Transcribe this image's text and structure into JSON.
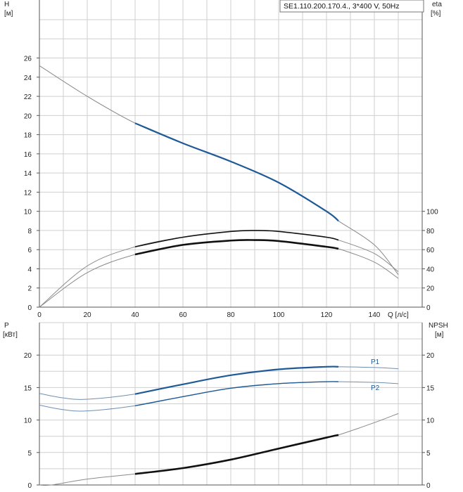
{
  "title_box": "SE1.110.200.170.4., 3*400 V, 50Hz",
  "colors": {
    "grid": "#cfcfcf",
    "axis": "#555555",
    "blue": "#1f5a96",
    "black": "#111111",
    "thin": "#8a8a8a"
  },
  "top_chart": {
    "left_axis_label_line1": "H",
    "left_axis_label_line2": "[м]",
    "right_axis_label_line1": "eta",
    "right_axis_label_line2": "[%]",
    "x_unit_label": "Q [л/с]",
    "x_ticks": [
      "0",
      "20",
      "40",
      "60",
      "80",
      "100",
      "120",
      "140"
    ],
    "left_ticks": [
      "0",
      "2",
      "4",
      "6",
      "8",
      "10",
      "12",
      "14",
      "16",
      "18",
      "20",
      "22",
      "24",
      "26"
    ],
    "right_ticks": [
      "0",
      "20",
      "40",
      "60",
      "80",
      "100"
    ]
  },
  "bottom_chart": {
    "left_axis_label_line1": "P",
    "left_axis_label_line2": "[кВт]",
    "right_axis_label_line1": "NPSH",
    "right_axis_label_line2": "[м]",
    "left_ticks": [
      "0",
      "5",
      "10",
      "15",
      "20"
    ],
    "right_ticks": [
      "0",
      "5",
      "10",
      "15",
      "20"
    ],
    "p1_label": "P1",
    "p2_label": "P2"
  },
  "chart_data": [
    {
      "type": "line",
      "x_label": "Q [л/с]",
      "y_label": "H [м]",
      "y2_label": "eta [%]",
      "xlim": [
        0,
        160
      ],
      "ylim": [
        0,
        30
      ],
      "y2lim": [
        0,
        100
      ],
      "grid": true,
      "series": [
        {
          "role": "head",
          "x": [
            0,
            20,
            40,
            60,
            80,
            100,
            120,
            125,
            140,
            150
          ],
          "y": [
            25.2,
            22.0,
            19.2,
            17.1,
            15.2,
            13.0,
            10.0,
            9.0,
            6.5,
            3.4
          ],
          "bold_range": [
            40,
            125
          ]
        },
        {
          "role": "efficiency_upper",
          "x": [
            0,
            20,
            40,
            60,
            80,
            90,
            100,
            120,
            125,
            140,
            150
          ],
          "y": [
            0,
            43,
            63,
            73,
            79,
            80,
            79,
            73,
            70,
            56,
            37
          ],
          "bold_range": [
            40,
            125
          ]
        },
        {
          "role": "efficiency_lower",
          "x": [
            0,
            20,
            40,
            60,
            80,
            90,
            100,
            120,
            125,
            140,
            150
          ],
          "y": [
            0,
            36,
            55,
            65,
            69.5,
            70,
            69,
            63,
            61,
            47,
            30
          ],
          "bold_range": [
            40,
            125
          ]
        }
      ]
    },
    {
      "type": "line",
      "x_label": "Q [л/с]",
      "y_label": "P [кВт]",
      "y2_label": "NPSH [м]",
      "xlim": [
        0,
        160
      ],
      "ylim": [
        0,
        25
      ],
      "y2lim": [
        0,
        25
      ],
      "grid": true,
      "series": [
        {
          "name": "P1",
          "x": [
            0,
            10,
            20,
            40,
            60,
            80,
            100,
            120,
            125,
            140,
            150
          ],
          "y": [
            14.1,
            13.4,
            13.2,
            14.0,
            15.5,
            16.9,
            17.8,
            18.2,
            18.2,
            18.1,
            17.9
          ],
          "bold_range": [
            40,
            125
          ]
        },
        {
          "name": "P2",
          "x": [
            0,
            10,
            20,
            40,
            60,
            80,
            100,
            120,
            125,
            140,
            150
          ],
          "y": [
            12.3,
            11.6,
            11.4,
            12.2,
            13.6,
            14.9,
            15.6,
            15.9,
            15.9,
            15.8,
            15.6
          ],
          "bold_range": [
            40,
            125
          ]
        },
        {
          "role": "NPSH",
          "x": [
            0,
            5,
            20,
            40,
            60,
            80,
            100,
            120,
            125,
            140,
            150
          ],
          "y": [
            0,
            0,
            0.9,
            1.7,
            2.6,
            3.9,
            5.6,
            7.3,
            7.7,
            9.6,
            11.0
          ],
          "bold_range": [
            40,
            125
          ]
        }
      ]
    }
  ]
}
